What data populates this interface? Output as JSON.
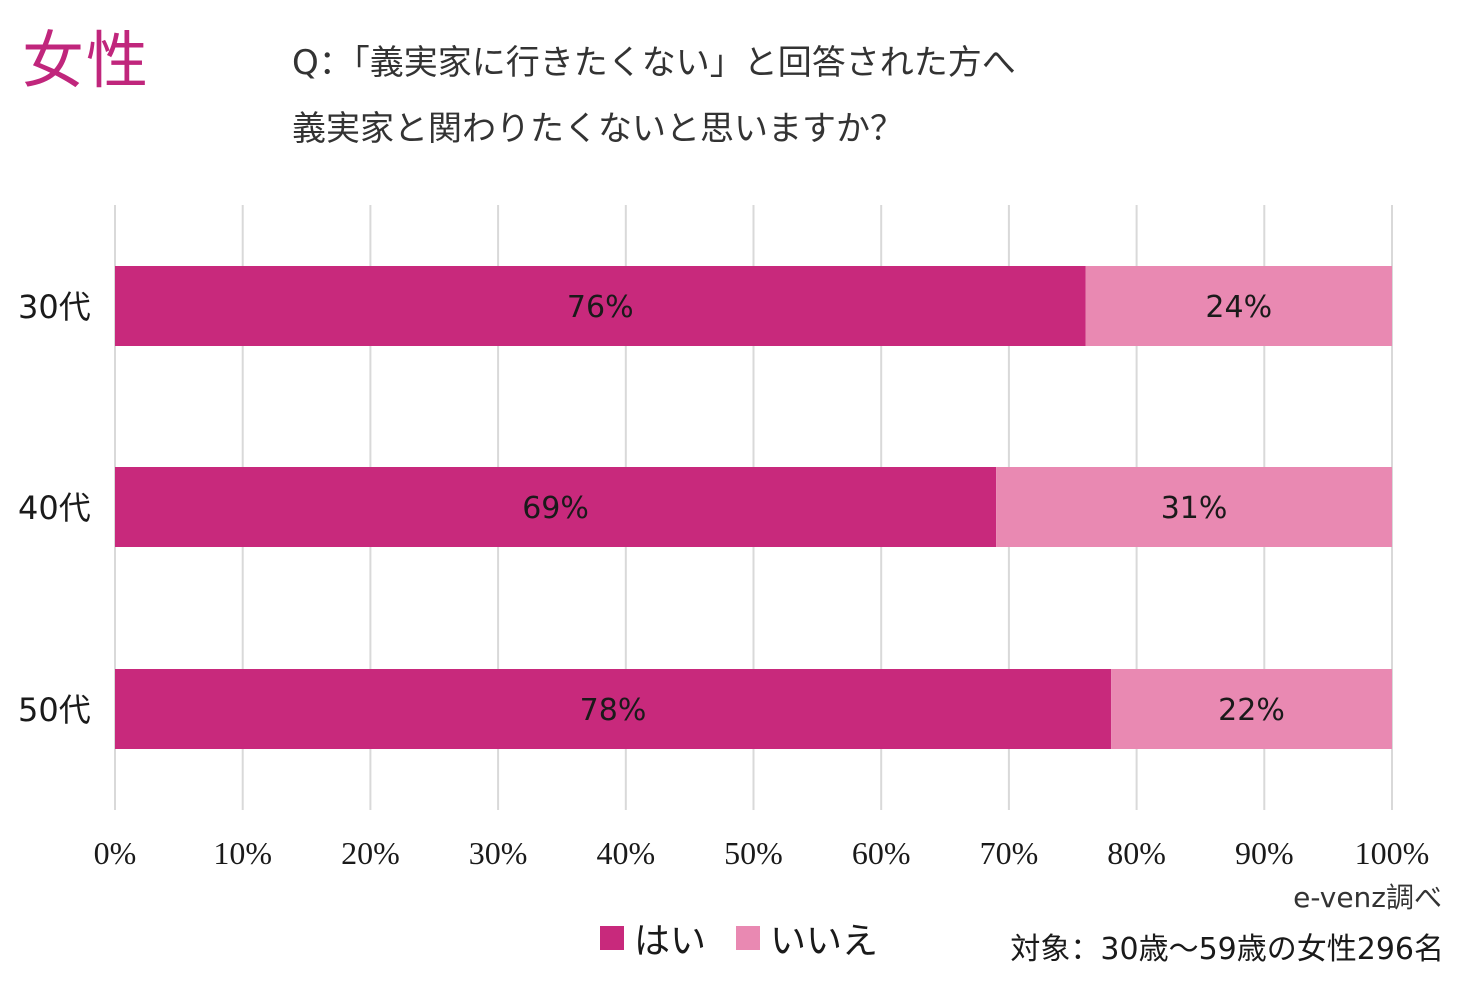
{
  "corner_label": "女性",
  "question": {
    "line1": "Q：「義実家に行きたくない」と回答された方へ",
    "line2": "義実家と関わりたくないと思いますか？"
  },
  "chart_data": {
    "type": "bar",
    "orientation": "horizontal",
    "stacked": true,
    "categories": [
      "30代",
      "40代",
      "50代"
    ],
    "series": [
      {
        "name": "はい",
        "color": "#c8297c",
        "values": [
          76,
          69,
          78
        ]
      },
      {
        "name": "いいえ",
        "color": "#e989b2",
        "values": [
          24,
          31,
          22
        ]
      }
    ],
    "data_labels": [
      [
        "76%",
        "69%",
        "78%"
      ],
      [
        "24%",
        "31%",
        "22%"
      ]
    ],
    "xlim": [
      0,
      100
    ],
    "xticks": [
      0,
      10,
      20,
      30,
      40,
      50,
      60,
      70,
      80,
      90,
      100
    ],
    "xtick_labels": [
      "0%",
      "10%",
      "20%",
      "30%",
      "40%",
      "50%",
      "60%",
      "70%",
      "80%",
      "90%",
      "100%"
    ],
    "grid": true,
    "legend_position": "bottom-center"
  },
  "footer": {
    "source": "e-venz調べ",
    "target": "対象：30歳～59歳の女性296名"
  }
}
